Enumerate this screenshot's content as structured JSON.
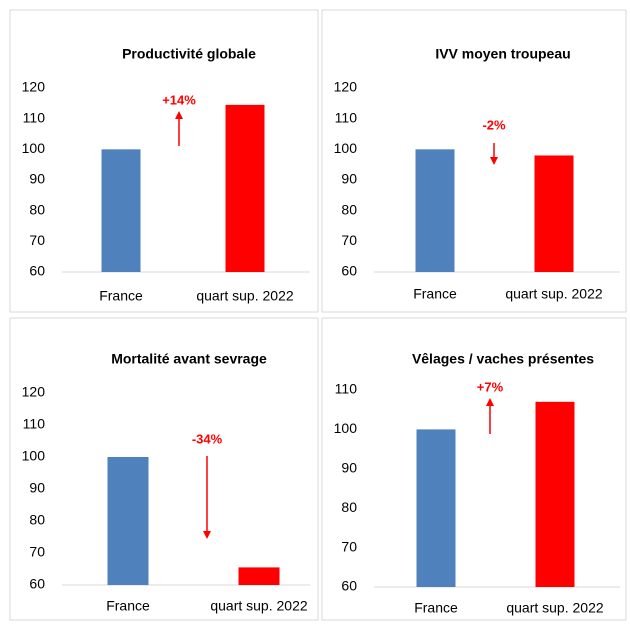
{
  "chart_data": [
    {
      "type": "bar",
      "title": "Productivité globale",
      "categories": [
        "France",
        "quart sup. 2022"
      ],
      "values": [
        100,
        114.5
      ],
      "colors": [
        "#4f81bd",
        "#ff0000"
      ],
      "ylim": [
        60,
        120
      ],
      "yticks": [
        60,
        70,
        80,
        90,
        100,
        110,
        120
      ],
      "annotation": "+14%"
    },
    {
      "type": "bar",
      "title": "IVV moyen troupeau",
      "categories": [
        "France",
        "quart sup. 2022"
      ],
      "values": [
        100,
        98
      ],
      "colors": [
        "#4f81bd",
        "#ff0000"
      ],
      "ylim": [
        60,
        120
      ],
      "yticks": [
        60,
        70,
        80,
        90,
        100,
        110,
        120
      ],
      "annotation": "-2%"
    },
    {
      "type": "bar",
      "title": "Mortalité avant sevrage",
      "categories": [
        "France",
        "quart sup. 2022"
      ],
      "values": [
        100,
        65.5
      ],
      "colors": [
        "#4f81bd",
        "#ff0000"
      ],
      "ylim": [
        60,
        120
      ],
      "yticks": [
        60,
        70,
        80,
        90,
        100,
        110,
        120
      ],
      "annotation": "-34%"
    },
    {
      "type": "bar",
      "title": "Vêlages / vaches présentes",
      "categories": [
        "France",
        "quart sup. 2022"
      ],
      "values": [
        100,
        107
      ],
      "colors": [
        "#4f81bd",
        "#ff0000"
      ],
      "ylim": [
        60,
        110
      ],
      "yticks": [
        60,
        70,
        80,
        90,
        100,
        110
      ],
      "annotation": "+7%"
    }
  ]
}
